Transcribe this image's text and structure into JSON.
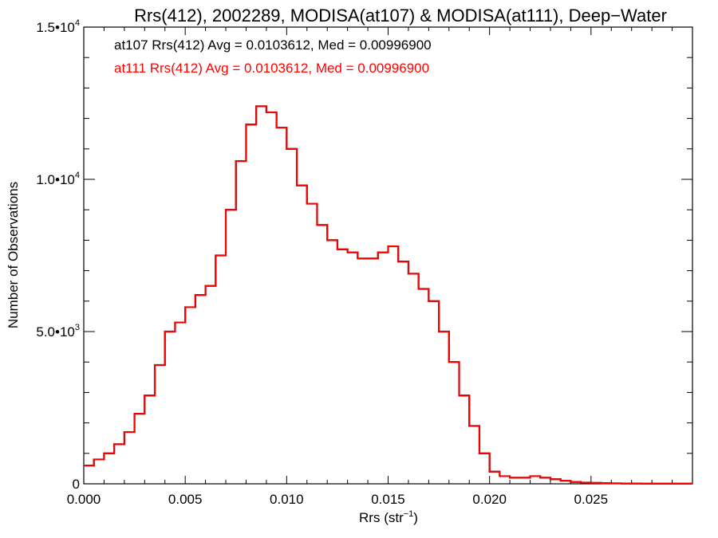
{
  "chart_data": {
    "type": "line",
    "step": true,
    "title": "Rrs(412), 2002289, MODISA(at107) & MODISA(at111), Deep−Water",
    "xlabel": "Rrs (str",
    "xlabel_sup": "−1",
    "xlabel_end": ")",
    "ylabel": "Number of Observations",
    "xlim": [
      0.0,
      0.03
    ],
    "ylim": [
      0,
      15000
    ],
    "x_ticks": [
      0.0,
      0.005,
      0.01,
      0.015,
      0.02,
      0.025
    ],
    "x_tick_labels": [
      "0.000",
      "0.005",
      "0.010",
      "0.015",
      "0.020",
      "0.025"
    ],
    "y_ticks": [
      {
        "value": 0,
        "base": "0",
        "exp": ""
      },
      {
        "value": 5000,
        "base": "5.0•10",
        "exp": "3"
      },
      {
        "value": 10000,
        "base": "1.0•10",
        "exp": "4"
      },
      {
        "value": 15000,
        "base": "1.5•10",
        "exp": "4"
      }
    ],
    "legend": [
      {
        "text": "at107 Rrs(412) Avg = 0.0103612, Med = 0.00996900",
        "color": "#000000"
      },
      {
        "text": "at111 Rrs(412) Avg = 0.0103612, Med = 0.00996900",
        "color": "#ff0000"
      }
    ],
    "series": [
      {
        "color": "#000000"
      },
      {
        "color": "#ff0000"
      }
    ],
    "x": [
      0.0,
      0.0005,
      0.001,
      0.0015,
      0.002,
      0.0025,
      0.003,
      0.0035,
      0.004,
      0.0045,
      0.005,
      0.0055,
      0.006,
      0.0065,
      0.007,
      0.0075,
      0.008,
      0.0085,
      0.009,
      0.0095,
      0.01,
      0.0105,
      0.011,
      0.0115,
      0.012,
      0.0125,
      0.013,
      0.0135,
      0.014,
      0.0145,
      0.015,
      0.0155,
      0.016,
      0.0165,
      0.017,
      0.0175,
      0.018,
      0.0185,
      0.019,
      0.0195,
      0.02,
      0.0205,
      0.021,
      0.0215,
      0.022,
      0.0225,
      0.023,
      0.0235,
      0.024,
      0.0245,
      0.025,
      0.0255,
      0.026,
      0.0265,
      0.027,
      0.0275,
      0.028,
      0.0285,
      0.029,
      0.0295,
      0.03
    ],
    "y": [
      600,
      800,
      1000,
      1300,
      1700,
      2300,
      2900,
      3900,
      5000,
      5300,
      5800,
      6200,
      6500,
      7500,
      9000,
      10600,
      11800,
      12400,
      12200,
      11700,
      11000,
      9800,
      9200,
      8500,
      8000,
      7700,
      7600,
      7400,
      7400,
      7600,
      7800,
      7300,
      6900,
      6400,
      6000,
      5000,
      4000,
      2900,
      1900,
      1000,
      400,
      250,
      200,
      200,
      250,
      200,
      150,
      100,
      60,
      40,
      30,
      20,
      15,
      10,
      10,
      5,
      5,
      5,
      5,
      5,
      5
    ]
  }
}
